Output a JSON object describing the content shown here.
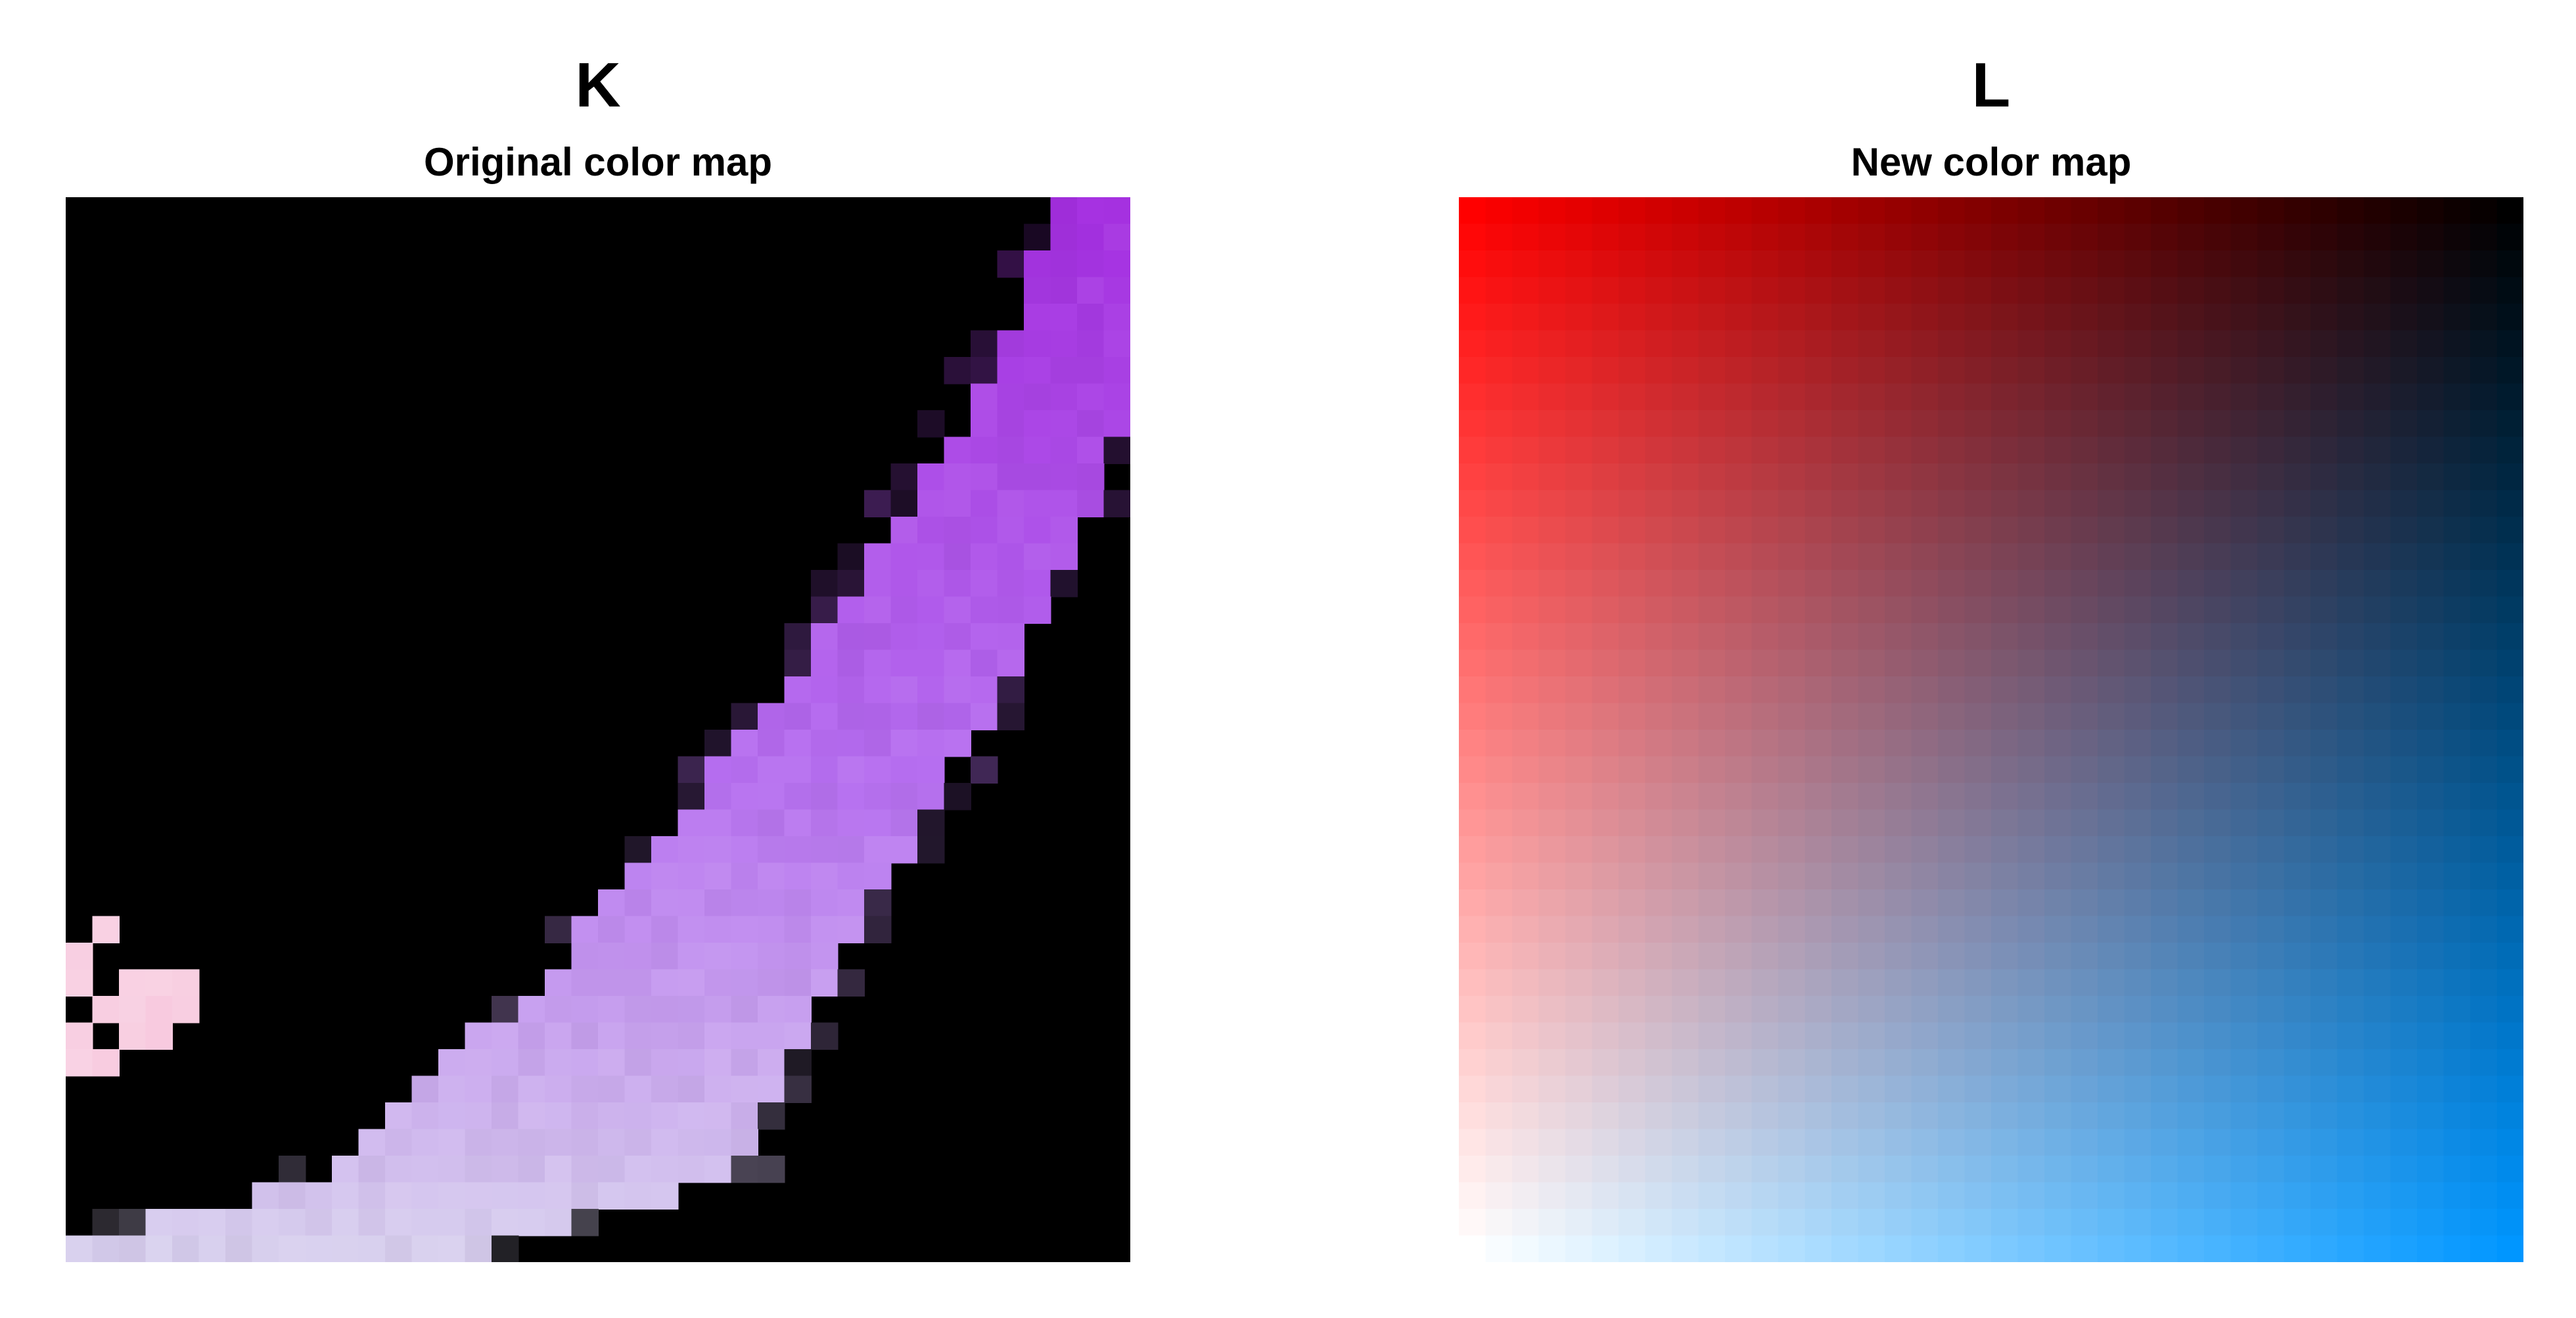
{
  "panels": [
    {
      "letter": "K",
      "subtitle": "Original color map",
      "grid_size": 40,
      "background_color": "#000000",
      "shape": "curved band from top-right to bottom-left, purple at top fading to pale pink/white at bottom-left",
      "colors": {
        "top": "#a42ee0",
        "middle": "#b66ff0",
        "bottom": "#d8d0ee",
        "left_tip": "#f7c6dc"
      }
    },
    {
      "letter": "L",
      "subtitle": "New color map",
      "grid_size": 40,
      "corner_colors": {
        "top_left": "#ff0000",
        "top_right": "#000000",
        "bottom_left": "#ffffff",
        "bottom_right": "#0096ff"
      }
    }
  ]
}
